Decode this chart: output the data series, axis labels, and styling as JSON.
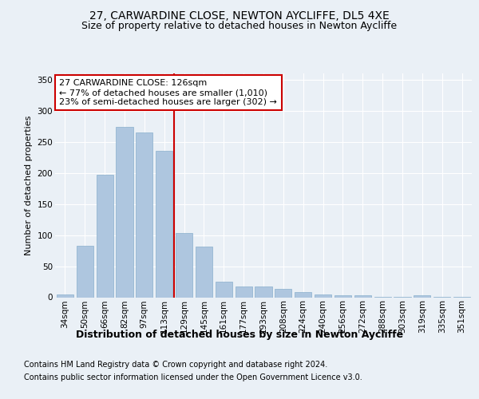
{
  "title1": "27, CARWARDINE CLOSE, NEWTON AYCLIFFE, DL5 4XE",
  "title2": "Size of property relative to detached houses in Newton Aycliffe",
  "xlabel": "Distribution of detached houses by size in Newton Aycliffe",
  "ylabel": "Number of detached properties",
  "categories": [
    "34sqm",
    "50sqm",
    "66sqm",
    "82sqm",
    "97sqm",
    "113sqm",
    "129sqm",
    "145sqm",
    "161sqm",
    "177sqm",
    "193sqm",
    "208sqm",
    "224sqm",
    "240sqm",
    "256sqm",
    "272sqm",
    "288sqm",
    "303sqm",
    "319sqm",
    "335sqm",
    "351sqm"
  ],
  "values": [
    5,
    83,
    197,
    275,
    265,
    236,
    103,
    82,
    25,
    18,
    18,
    13,
    8,
    5,
    3,
    3,
    1,
    1,
    3,
    1,
    1
  ],
  "bar_color": "#aec6df",
  "bar_edge_color": "#8ab0cc",
  "vline_x": 5.5,
  "vline_color": "#cc0000",
  "annotation_text": "27 CARWARDINE CLOSE: 126sqm\n← 77% of detached houses are smaller (1,010)\n23% of semi-detached houses are larger (302) →",
  "annotation_box_facecolor": "#ffffff",
  "annotation_box_edgecolor": "#cc0000",
  "ylim": [
    0,
    360
  ],
  "yticks": [
    0,
    50,
    100,
    150,
    200,
    250,
    300,
    350
  ],
  "footnote1": "Contains HM Land Registry data © Crown copyright and database right 2024.",
  "footnote2": "Contains public sector information licensed under the Open Government Licence v3.0.",
  "background_color": "#eaf0f6",
  "grid_color": "#ffffff",
  "title1_fontsize": 10,
  "title2_fontsize": 9,
  "xlabel_fontsize": 9,
  "ylabel_fontsize": 8,
  "tick_fontsize": 7.5,
  "annotation_fontsize": 8,
  "footnote_fontsize": 7
}
